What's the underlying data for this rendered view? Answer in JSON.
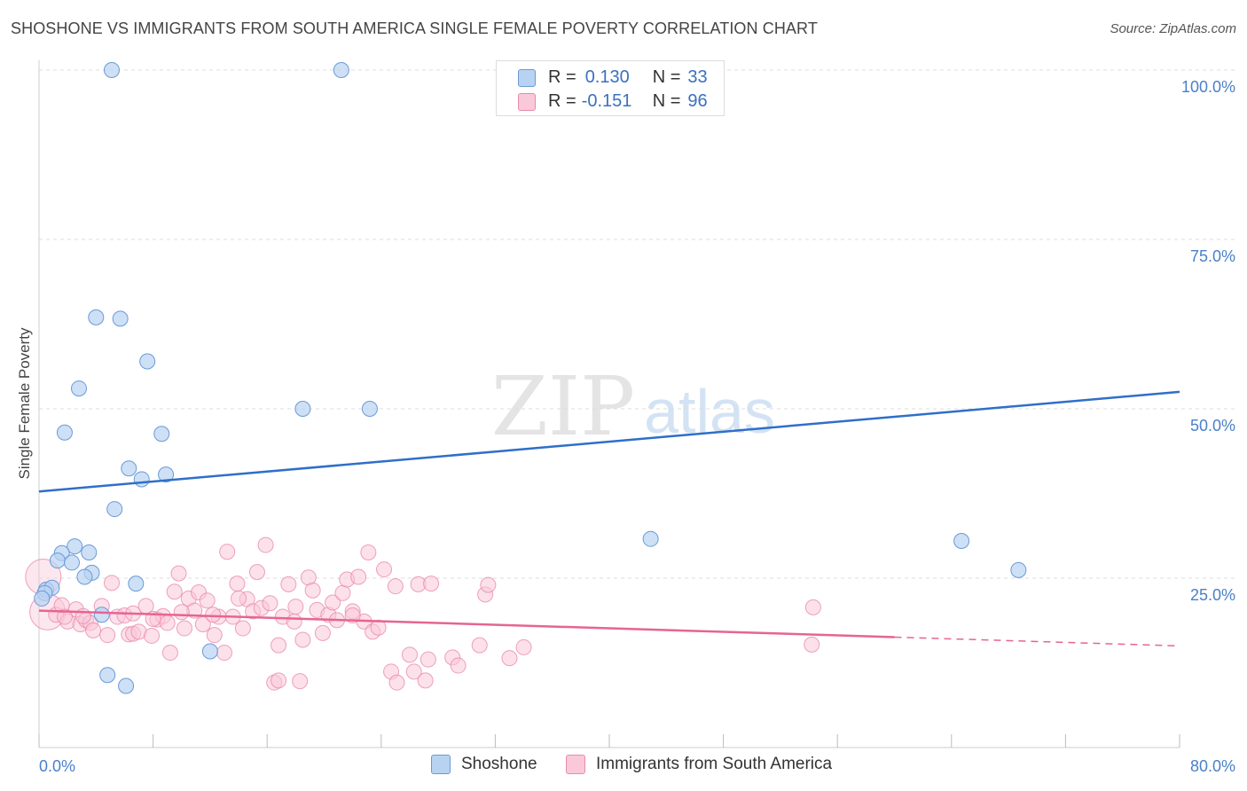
{
  "header": {
    "title": "SHOSHONE VS IMMIGRANTS FROM SOUTH AMERICA SINGLE FEMALE POVERTY CORRELATION CHART",
    "source": "Source: ZipAtlas.com"
  },
  "watermark": {
    "zip": "ZIP",
    "atlas": "atlas"
  },
  "colors": {
    "shoshone_fill": "#b8d3f2",
    "shoshone_stroke": "#6b9ad8",
    "shoshone_line": "#2f6fc8",
    "immigrants_fill": "#f9c9d9",
    "immigrants_stroke": "#ea8aab",
    "immigrants_line": "#e66493",
    "axis_label": "#4a80c8",
    "grid": "#dddddd"
  },
  "legend_top": {
    "rows": [
      {
        "r_label": "R =",
        "r_value": "0.130",
        "n_label": "N =",
        "n_value": "33"
      },
      {
        "r_label": "R =",
        "r_value": "-0.151",
        "n_label": "N =",
        "n_value": "96"
      }
    ]
  },
  "legend_bottom": {
    "items": [
      "Shoshone",
      "Immigrants from South America"
    ]
  },
  "chart_data": {
    "type": "scatter",
    "title": "SHOSHONE VS IMMIGRANTS FROM SOUTH AMERICA SINGLE FEMALE POVERTY CORRELATION CHART",
    "xlabel": "",
    "ylabel": "Single Female Poverty",
    "xlim": [
      0,
      80
    ],
    "ylim": [
      0,
      100
    ],
    "x_tick_labels": [
      "0.0%",
      "80.0%"
    ],
    "y_tick_labels": [
      "25.0%",
      "50.0%",
      "75.0%",
      "100.0%"
    ],
    "y_ticks": [
      25,
      50,
      75,
      100
    ],
    "x_minor_ticks": [
      0,
      8,
      16,
      24,
      32,
      40,
      48,
      56,
      64,
      72,
      80
    ],
    "grid": true,
    "legend_position": "top-center",
    "series": [
      {
        "name": "Shoshone",
        "R": 0.13,
        "N": 33,
        "trend": {
          "x": [
            0,
            80
          ],
          "y": [
            37.8,
            52.5
          ],
          "dashed_from": null
        },
        "points": [
          {
            "x": 5.1,
            "y": 100
          },
          {
            "x": 21.2,
            "y": 100
          },
          {
            "x": 4.0,
            "y": 63.5
          },
          {
            "x": 5.7,
            "y": 63.3
          },
          {
            "x": 7.6,
            "y": 57.0
          },
          {
            "x": 2.8,
            "y": 53.0
          },
          {
            "x": 18.5,
            "y": 50.0
          },
          {
            "x": 23.2,
            "y": 50.0
          },
          {
            "x": 1.8,
            "y": 46.5
          },
          {
            "x": 8.6,
            "y": 46.3
          },
          {
            "x": 6.3,
            "y": 41.2
          },
          {
            "x": 7.2,
            "y": 39.6
          },
          {
            "x": 8.9,
            "y": 40.3
          },
          {
            "x": 5.3,
            "y": 35.2
          },
          {
            "x": 2.5,
            "y": 29.7
          },
          {
            "x": 1.6,
            "y": 28.7
          },
          {
            "x": 3.5,
            "y": 28.8
          },
          {
            "x": 1.3,
            "y": 27.6
          },
          {
            "x": 2.3,
            "y": 27.3
          },
          {
            "x": 3.7,
            "y": 25.8
          },
          {
            "x": 3.2,
            "y": 25.2
          },
          {
            "x": 6.8,
            "y": 24.2
          },
          {
            "x": 0.5,
            "y": 23.3
          },
          {
            "x": 0.9,
            "y": 23.6
          },
          {
            "x": 0.4,
            "y": 22.8
          },
          {
            "x": 4.4,
            "y": 19.6
          },
          {
            "x": 12.0,
            "y": 14.2
          },
          {
            "x": 4.8,
            "y": 10.7
          },
          {
            "x": 6.1,
            "y": 9.1
          },
          {
            "x": 42.9,
            "y": 30.8
          },
          {
            "x": 64.7,
            "y": 30.5
          },
          {
            "x": 68.7,
            "y": 26.2
          },
          {
            "x": 0.2,
            "y": 22.0
          }
        ]
      },
      {
        "name": "Immigrants from South America",
        "R": -0.151,
        "N": 96,
        "trend": {
          "x": [
            0,
            60,
            80
          ],
          "y": [
            20.2,
            16.3,
            15.0
          ],
          "dashed_from": 60
        },
        "points": [
          {
            "x": 0.3,
            "y": 25.2,
            "big": true
          },
          {
            "x": 0.6,
            "y": 20.0,
            "big": true
          },
          {
            "x": 1.2,
            "y": 19.6
          },
          {
            "x": 1.6,
            "y": 21.0
          },
          {
            "x": 2.0,
            "y": 18.6
          },
          {
            "x": 2.6,
            "y": 20.4
          },
          {
            "x": 2.9,
            "y": 18.2
          },
          {
            "x": 3.3,
            "y": 18.8
          },
          {
            "x": 3.6,
            "y": 18.4
          },
          {
            "x": 3.8,
            "y": 17.3
          },
          {
            "x": 4.4,
            "y": 20.9
          },
          {
            "x": 4.8,
            "y": 16.6
          },
          {
            "x": 5.1,
            "y": 24.3
          },
          {
            "x": 5.5,
            "y": 19.3
          },
          {
            "x": 6.0,
            "y": 19.5
          },
          {
            "x": 6.3,
            "y": 16.7
          },
          {
            "x": 6.6,
            "y": 16.8
          },
          {
            "x": 7.0,
            "y": 17.1
          },
          {
            "x": 7.5,
            "y": 20.9
          },
          {
            "x": 7.9,
            "y": 16.5
          },
          {
            "x": 8.3,
            "y": 18.9
          },
          {
            "x": 8.7,
            "y": 19.4
          },
          {
            "x": 9.0,
            "y": 18.4
          },
          {
            "x": 9.2,
            "y": 14.0
          },
          {
            "x": 9.5,
            "y": 23.0
          },
          {
            "x": 9.8,
            "y": 25.7
          },
          {
            "x": 10.2,
            "y": 17.6
          },
          {
            "x": 10.5,
            "y": 22.0
          },
          {
            "x": 10.9,
            "y": 20.2
          },
          {
            "x": 11.2,
            "y": 22.9
          },
          {
            "x": 11.5,
            "y": 18.2
          },
          {
            "x": 11.8,
            "y": 21.7
          },
          {
            "x": 12.3,
            "y": 16.6
          },
          {
            "x": 12.6,
            "y": 19.3
          },
          {
            "x": 13.0,
            "y": 14.0
          },
          {
            "x": 13.2,
            "y": 28.9
          },
          {
            "x": 13.6,
            "y": 19.3
          },
          {
            "x": 13.9,
            "y": 24.2
          },
          {
            "x": 14.3,
            "y": 17.6
          },
          {
            "x": 14.6,
            "y": 21.9
          },
          {
            "x": 15.0,
            "y": 20.1
          },
          {
            "x": 15.3,
            "y": 25.9
          },
          {
            "x": 15.6,
            "y": 20.6
          },
          {
            "x": 15.9,
            "y": 29.9
          },
          {
            "x": 16.2,
            "y": 21.3
          },
          {
            "x": 16.5,
            "y": 9.6
          },
          {
            "x": 16.8,
            "y": 15.1
          },
          {
            "x": 17.1,
            "y": 19.3
          },
          {
            "x": 17.5,
            "y": 24.1
          },
          {
            "x": 17.9,
            "y": 18.6
          },
          {
            "x": 18.3,
            "y": 9.8
          },
          {
            "x": 18.5,
            "y": 15.9
          },
          {
            "x": 18.9,
            "y": 25.1
          },
          {
            "x": 19.2,
            "y": 23.2
          },
          {
            "x": 19.5,
            "y": 20.3
          },
          {
            "x": 19.9,
            "y": 16.9
          },
          {
            "x": 20.3,
            "y": 19.6
          },
          {
            "x": 20.6,
            "y": 21.4
          },
          {
            "x": 20.9,
            "y": 18.8
          },
          {
            "x": 21.3,
            "y": 22.8
          },
          {
            "x": 21.6,
            "y": 24.8
          },
          {
            "x": 22.0,
            "y": 20.1
          },
          {
            "x": 22.4,
            "y": 25.2
          },
          {
            "x": 22.8,
            "y": 18.6
          },
          {
            "x": 23.1,
            "y": 28.8
          },
          {
            "x": 23.4,
            "y": 17.1
          },
          {
            "x": 23.8,
            "y": 17.7
          },
          {
            "x": 24.2,
            "y": 26.3
          },
          {
            "x": 24.7,
            "y": 11.2
          },
          {
            "x": 25.0,
            "y": 23.8
          },
          {
            "x": 25.1,
            "y": 9.6
          },
          {
            "x": 26.0,
            "y": 13.7
          },
          {
            "x": 26.3,
            "y": 11.2
          },
          {
            "x": 26.6,
            "y": 24.1
          },
          {
            "x": 27.1,
            "y": 9.9
          },
          {
            "x": 27.3,
            "y": 13.0
          },
          {
            "x": 27.5,
            "y": 24.2
          },
          {
            "x": 29.0,
            "y": 13.3
          },
          {
            "x": 29.4,
            "y": 12.1
          },
          {
            "x": 30.9,
            "y": 15.1
          },
          {
            "x": 31.3,
            "y": 22.6
          },
          {
            "x": 31.5,
            "y": 24.0
          },
          {
            "x": 33.0,
            "y": 13.2
          },
          {
            "x": 34.0,
            "y": 14.8
          },
          {
            "x": 54.3,
            "y": 20.7
          },
          {
            "x": 54.2,
            "y": 15.2
          },
          {
            "x": 12.2,
            "y": 19.6
          },
          {
            "x": 3.1,
            "y": 19.4
          },
          {
            "x": 1.8,
            "y": 19.3
          },
          {
            "x": 8.0,
            "y": 19.0
          },
          {
            "x": 10.0,
            "y": 20.0
          },
          {
            "x": 14.0,
            "y": 22.0
          },
          {
            "x": 18.0,
            "y": 20.8
          },
          {
            "x": 22.0,
            "y": 19.5
          },
          {
            "x": 6.6,
            "y": 19.8
          },
          {
            "x": 16.8,
            "y": 9.9
          }
        ]
      }
    ]
  }
}
